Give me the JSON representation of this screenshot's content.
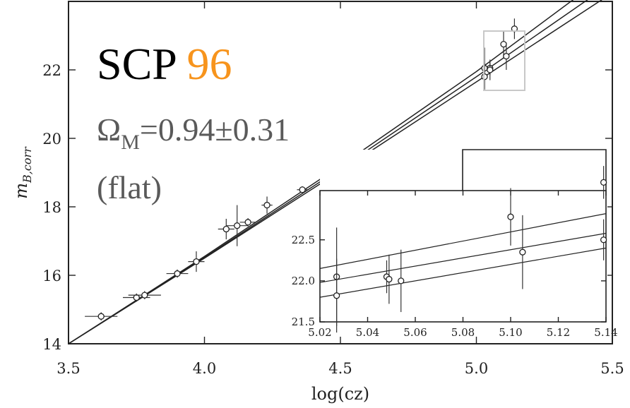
{
  "overlay": {
    "title_prefix": "SCP",
    "title_number": "96",
    "omega_symbol": "Ω",
    "omega_sub": "M",
    "omega_value": "=0.94±0.31",
    "flat_label": "(flat)",
    "colors": {
      "title": "#000000",
      "number": "#f7941d",
      "stat": "#5a5a5a"
    }
  },
  "chart_data": [
    {
      "type": "scatter",
      "xlabel": "log(cz)",
      "ylabel": "m_{B,corr}",
      "ylabel_main": "m",
      "ylabel_sub": "B,corr",
      "xlim": [
        3.5,
        5.5
      ],
      "ylim": [
        14,
        24
      ],
      "xticks": [
        3.5,
        4.0,
        4.5,
        5.0,
        5.5
      ],
      "xtick_labels": [
        "3.5",
        "4.0",
        "4.5",
        "5.0",
        "5.5"
      ],
      "yticks": [
        14,
        16,
        18,
        20,
        22
      ],
      "ytick_labels": [
        "14",
        "16",
        "18",
        "20",
        "22"
      ],
      "grid": false,
      "points": [
        {
          "x": 3.62,
          "y": 14.8,
          "xerr": 0.06,
          "yerr": 0.12
        },
        {
          "x": 3.75,
          "y": 15.35,
          "xerr": 0.05,
          "yerr": 0.12
        },
        {
          "x": 3.78,
          "y": 15.42,
          "xerr": 0.06,
          "yerr": 0.12
        },
        {
          "x": 3.9,
          "y": 16.05,
          "xerr": 0.04,
          "yerr": 0.12
        },
        {
          "x": 3.97,
          "y": 16.4,
          "xerr": 0.03,
          "yerr": 0.3
        },
        {
          "x": 4.08,
          "y": 17.35,
          "xerr": 0.03,
          "yerr": 0.3
        },
        {
          "x": 4.12,
          "y": 17.45,
          "xerr": 0.04,
          "yerr": 0.6
        },
        {
          "x": 4.16,
          "y": 17.55,
          "xerr": 0.03,
          "yerr": 0.12
        },
        {
          "x": 4.23,
          "y": 18.05,
          "xerr": 0.02,
          "yerr": 0.25
        },
        {
          "x": 4.36,
          "y": 18.5,
          "xerr": 0.02,
          "yerr": 0.1
        },
        {
          "x": 4.5,
          "y": 19.25,
          "xerr": 0.01,
          "yerr": 0.1
        },
        {
          "x": 5.03,
          "y": 22.05,
          "xerr": 0.0,
          "yerr": 0.6
        },
        {
          "x": 5.03,
          "y": 21.8,
          "xerr": 0.0,
          "yerr": 0.4
        },
        {
          "x": 5.05,
          "y": 22.05,
          "xerr": 0.0,
          "yerr": 0.2
        },
        {
          "x": 5.05,
          "y": 22.0,
          "xerr": 0.0,
          "yerr": 0.3
        },
        {
          "x": 5.1,
          "y": 22.75,
          "xerr": 0.0,
          "yerr": 0.4
        },
        {
          "x": 5.11,
          "y": 22.4,
          "xerr": 0.0,
          "yerr": 0.4
        },
        {
          "x": 5.14,
          "y": 23.2,
          "xerr": 0.0,
          "yerr": 0.3
        }
      ],
      "series": [
        {
          "x": [
            3.5,
            4.0,
            4.5,
            5.0,
            5.5
          ],
          "y": [
            14.0,
            16.55,
            19.2,
            21.95,
            24.9
          ]
        },
        {
          "x": [
            3.5,
            4.0,
            4.5,
            5.0,
            5.5
          ],
          "y": [
            14.0,
            16.52,
            19.12,
            21.8,
            24.55
          ]
        },
        {
          "x": [
            3.5,
            4.0,
            4.5,
            5.0,
            5.5
          ],
          "y": [
            14.0,
            16.5,
            19.05,
            21.65,
            24.25
          ]
        }
      ]
    },
    {
      "type": "scatter",
      "xlim": [
        5.02,
        5.14
      ],
      "ylim": [
        21.5,
        23.1
      ],
      "xticks": [
        5.02,
        5.04,
        5.06,
        5.08,
        5.1,
        5.12,
        5.14
      ],
      "xtick_labels": [
        "5.02",
        "5.04",
        "5.06",
        "5.08",
        "5.10",
        "5.12",
        "5.14"
      ],
      "yticks": [
        21.5,
        22.0,
        22.5
      ],
      "ytick_labels": [
        "21.5",
        "22.0",
        "22.5"
      ],
      "grid": false,
      "points": [
        {
          "x": 5.027,
          "y": 22.05,
          "yerr": 0.6
        },
        {
          "x": 5.027,
          "y": 21.82,
          "yerr": 0.45
        },
        {
          "x": 5.048,
          "y": 22.05,
          "yerr": 0.2
        },
        {
          "x": 5.049,
          "y": 22.02,
          "yerr": 0.3
        },
        {
          "x": 5.054,
          "y": 22.0,
          "yerr": 0.38
        },
        {
          "x": 5.1,
          "y": 22.78,
          "yerr": 0.35
        },
        {
          "x": 5.105,
          "y": 22.35,
          "yerr": 0.45
        },
        {
          "x": 5.139,
          "y": 22.5,
          "yerr": 0.25
        },
        {
          "x": 5.139,
          "y": 23.2,
          "yerr": 0.2
        }
      ],
      "series": [
        {
          "x": [
            5.02,
            5.14
          ],
          "y": [
            22.15,
            22.82
          ]
        },
        {
          "x": [
            5.02,
            5.14
          ],
          "y": [
            21.98,
            22.58
          ]
        },
        {
          "x": [
            5.02,
            5.14
          ],
          "y": [
            21.8,
            22.4
          ]
        }
      ]
    }
  ]
}
